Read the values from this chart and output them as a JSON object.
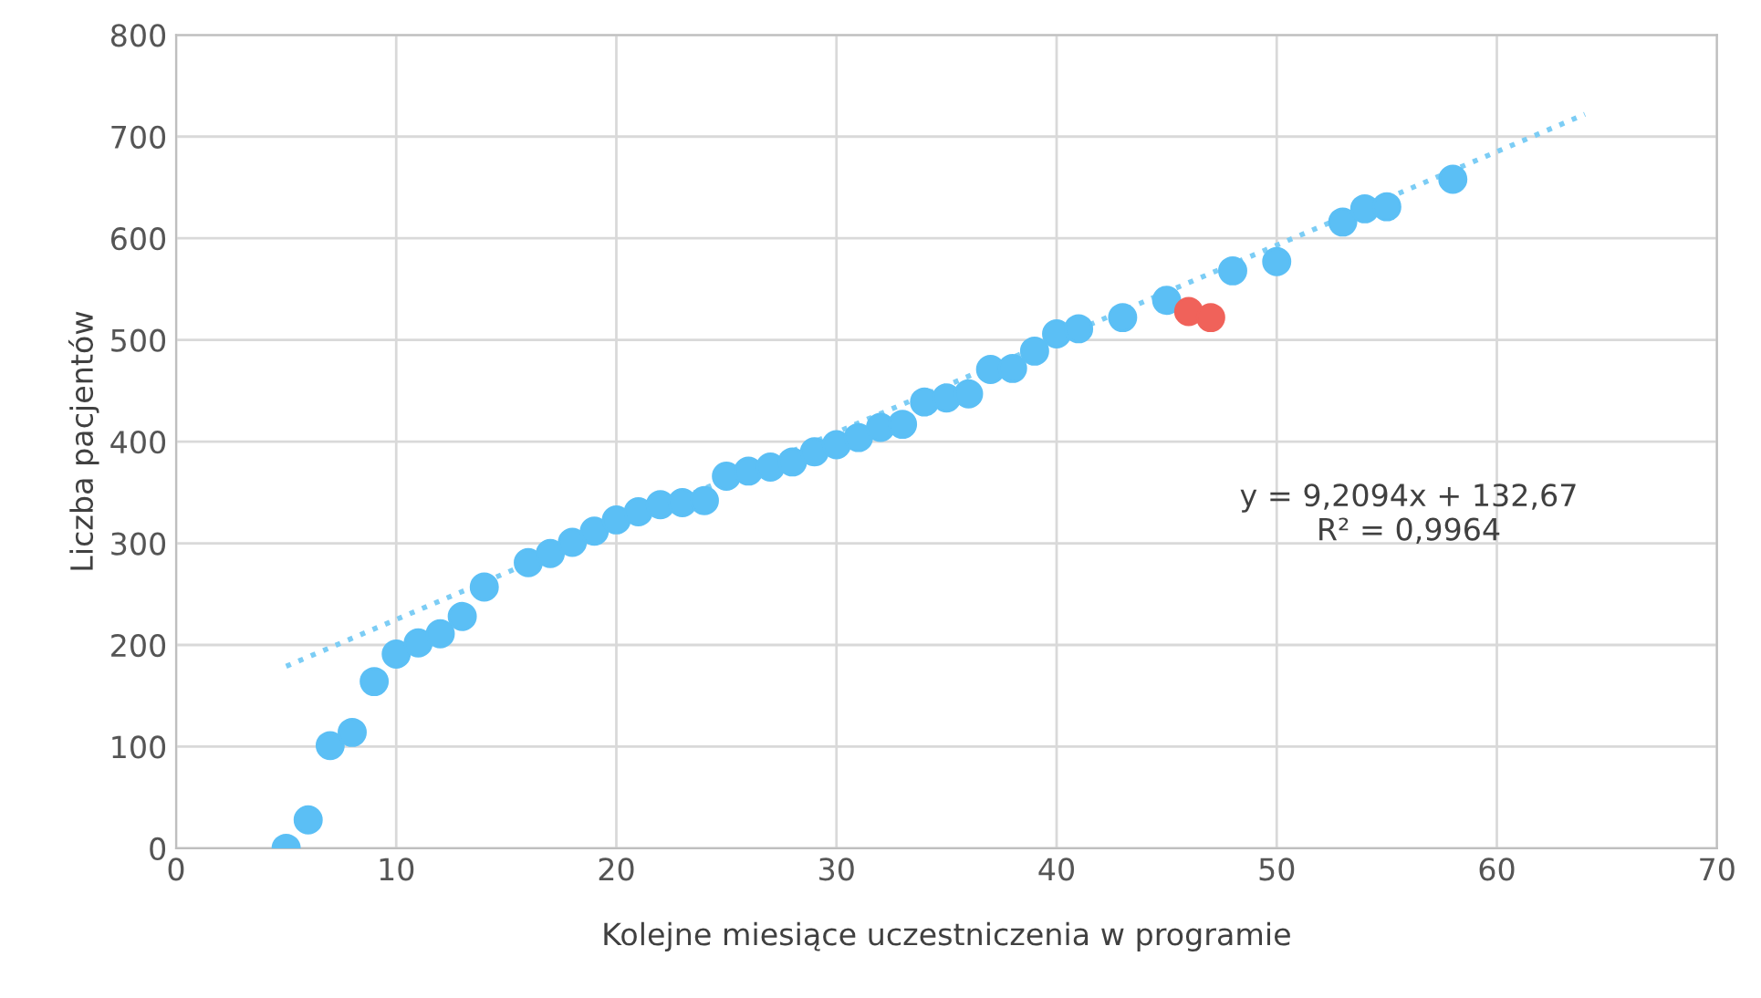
{
  "chart_data": {
    "type": "scatter",
    "xlabel": "Kolejne miesiące uczestniczenia w programie",
    "ylabel": "Liczba pacjentów",
    "series": [
      {
        "color": "#5bbff5",
        "x": [
          5,
          6,
          7,
          8,
          9,
          10,
          11,
          12,
          13,
          14,
          16,
          17,
          18,
          19,
          20,
          21,
          22,
          23,
          24,
          25,
          26,
          27,
          28,
          29,
          30,
          31,
          32,
          33,
          34,
          35,
          36,
          37,
          38,
          39,
          40,
          41,
          43,
          45,
          48,
          50,
          53,
          54,
          55,
          58
        ],
        "values": [
          0,
          28,
          101,
          114,
          164,
          191,
          202,
          211,
          228,
          257,
          281,
          290,
          301,
          312,
          323,
          331,
          338,
          340,
          342,
          366,
          371,
          375,
          380,
          390,
          397,
          404,
          414,
          417,
          439,
          443,
          447,
          471,
          472,
          489,
          506,
          511,
          522,
          539,
          568,
          577,
          616,
          629,
          631,
          658
        ]
      },
      {
        "color": "#f0625a",
        "x": [
          46,
          47
        ],
        "values": [
          528,
          522
        ]
      },
      {
        "type": "line",
        "color": "#7ccdf5",
        "line_style": "dotted",
        "marker": "none",
        "x": [
          5,
          64
        ],
        "values": [
          179,
          722
        ]
      }
    ],
    "marker": "circle",
    "annotations": [
      "y = 9,2094x + 132,67\nR² = 0,9964"
    ],
    "xlim": [
      0,
      70
    ],
    "xticks": [
      0,
      10,
      20,
      30,
      40,
      50,
      60,
      70
    ],
    "ylim": [
      0,
      800
    ],
    "yticks": [
      0,
      100,
      200,
      300,
      400,
      500,
      600,
      700,
      800
    ],
    "grid": true,
    "legend": false
  }
}
